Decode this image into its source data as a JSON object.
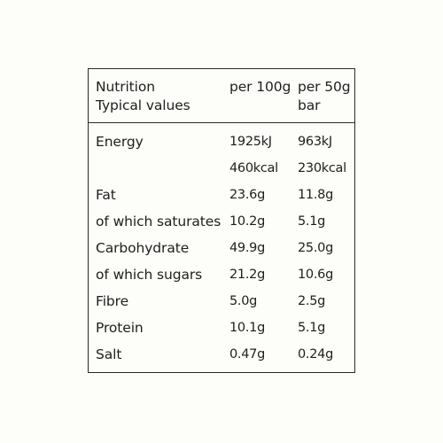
{
  "header": {
    "nutrition": "Nutrition",
    "typical_values": "Typical values",
    "per_100g": "per 100g",
    "per_50g_line1": "per 50g",
    "per_50g_line2": "bar"
  },
  "rows": [
    {
      "label": "Energy",
      "per100": "1925kJ",
      "per50": "963kJ"
    },
    {
      "label": "",
      "per100": "460kcal",
      "per50": "230kcal"
    },
    {
      "label": "Fat",
      "per100": "23.6g",
      "per50": "11.8g"
    },
    {
      "label": "of which saturates",
      "per100": "10.2g",
      "per50": "5.1g"
    },
    {
      "label": "Carbohydrate",
      "per100": "49.9g",
      "per50": "25.0g"
    },
    {
      "label": "of which sugars",
      "per100": "21.2g",
      "per50": "10.6g"
    },
    {
      "label": "Fibre",
      "per100": "5.0g",
      "per50": "2.5g"
    },
    {
      "label": "Protein",
      "per100": "10.1g",
      "per50": "5.1g"
    },
    {
      "label": "Salt",
      "per100": "0.47g",
      "per50": "0.24g"
    }
  ]
}
